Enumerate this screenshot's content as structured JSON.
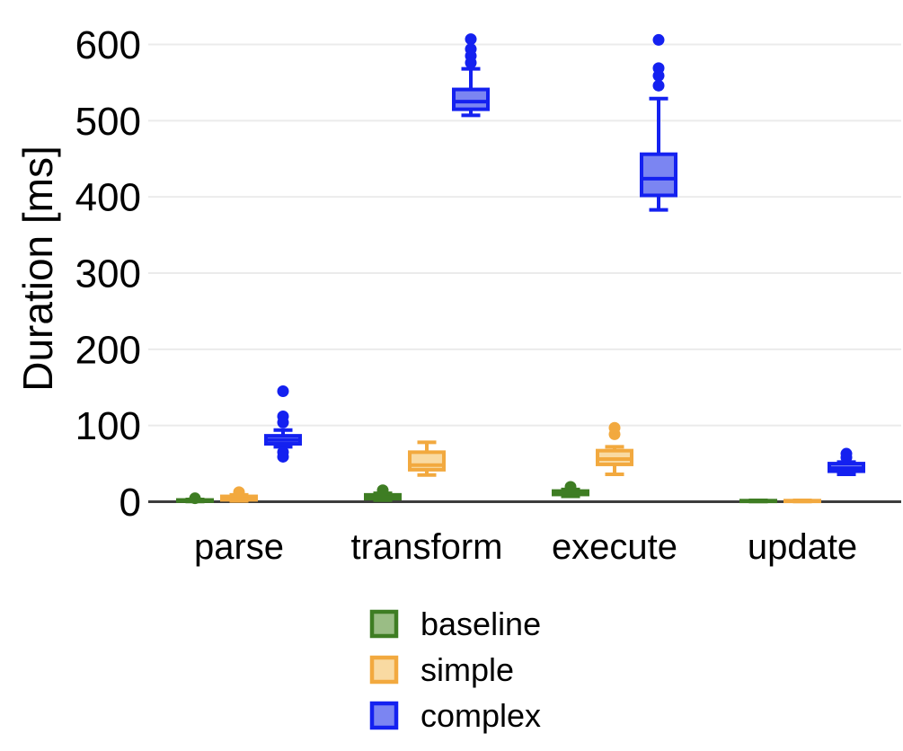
{
  "chart_data": {
    "type": "boxplot",
    "title": "",
    "xlabel": "",
    "ylabel": "Duration [ms]",
    "yticks": [
      0,
      100,
      200,
      300,
      400,
      500,
      600
    ],
    "ylim": [
      0,
      620
    ],
    "grid": "horizontal-light",
    "legend_position": "bottom",
    "categories": [
      "parse",
      "transform",
      "execute",
      "update"
    ],
    "series": [
      {
        "name": "baseline",
        "label": "baseline",
        "stroke": "#3E7D23",
        "fill": "#9ABD85",
        "boxes": [
          {
            "low": 0.3,
            "q1": 0.8,
            "median": 1.5,
            "q3": 2.3,
            "high": 3,
            "outliers": [
              4.5
            ]
          },
          {
            "low": 2,
            "q1": 4,
            "median": 6,
            "q3": 9,
            "high": 11,
            "outliers": [
              15
            ]
          },
          {
            "low": 7,
            "q1": 9.5,
            "median": 11.5,
            "q3": 14,
            "high": 16,
            "outliers": [
              19.5
            ]
          },
          {
            "low": 0.3,
            "q1": 0.6,
            "median": 1,
            "q3": 1.4,
            "high": 1.7,
            "outliers": []
          }
        ]
      },
      {
        "name": "simple",
        "label": "simple",
        "stroke": "#F2A93F",
        "fill": "#F9DAA2",
        "boxes": [
          {
            "low": 1,
            "q1": 2.5,
            "median": 4,
            "q3": 7,
            "high": 9,
            "outliers": [
              12.5
            ]
          },
          {
            "low": 35,
            "q1": 42,
            "median": 48,
            "q3": 65,
            "high": 78,
            "outliers": []
          },
          {
            "low": 36,
            "q1": 49,
            "median": 56,
            "q3": 67,
            "high": 72,
            "outliers": [
              88.5,
              97
            ]
          },
          {
            "low": 0.3,
            "q1": 0.6,
            "median": 1,
            "q3": 1.4,
            "high": 1.7,
            "outliers": []
          }
        ]
      },
      {
        "name": "complex",
        "label": "complex",
        "stroke": "#1421F0",
        "fill": "#7B85F2",
        "boxes": [
          {
            "low": 72,
            "q1": 76,
            "median": 81,
            "q3": 86.5,
            "high": 94,
            "outliers": [
              145,
              112,
              104,
              65,
              59
            ]
          },
          {
            "low": 507,
            "q1": 515,
            "median": 525,
            "q3": 541,
            "high": 568,
            "outliers": [
              607,
              594,
              585,
              576
            ]
          },
          {
            "low": 383,
            "q1": 402,
            "median": 424,
            "q3": 456,
            "high": 529,
            "outliers": [
              606,
              569,
              559,
              546
            ]
          },
          {
            "low": 36,
            "q1": 40,
            "median": 44,
            "q3": 50,
            "high": 52,
            "outliers": [
              58,
              63
            ]
          }
        ]
      }
    ],
    "colors": {
      "grid": "#ebebeb",
      "axis": "#3d3d3d",
      "text": "#000000",
      "background": "#ffffff"
    }
  }
}
